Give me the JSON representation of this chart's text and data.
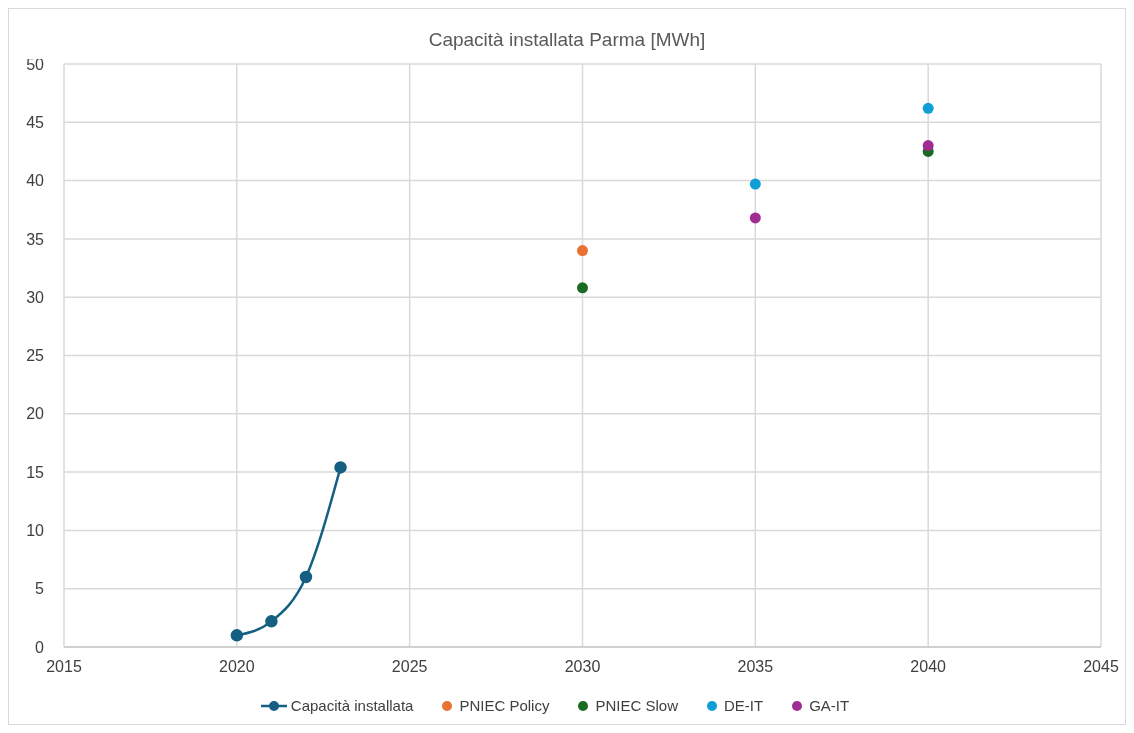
{
  "chart_data": {
    "type": "line",
    "title": "Capacità installata Parma [MWh]",
    "xlim": [
      2015,
      2045
    ],
    "xticks": [
      2015,
      2020,
      2025,
      2030,
      2035,
      2040,
      2045
    ],
    "ylim": [
      0,
      50
    ],
    "yticks": [
      0,
      5,
      10,
      15,
      20,
      25,
      30,
      35,
      40,
      45,
      50
    ],
    "grid": true,
    "legend": "bottom",
    "marker": "circle",
    "line_style": "solid",
    "series": [
      {
        "name": "Capacità installata",
        "type": "line",
        "color": "#156082",
        "x": [
          2020,
          2021,
          2022,
          2023
        ],
        "values": [
          1.0,
          2.2,
          6.0,
          15.4
        ]
      },
      {
        "name": "PNIEC Policy",
        "type": "scatter",
        "color": "#e97132",
        "x": [
          2030
        ],
        "values": [
          34.0
        ]
      },
      {
        "name": "PNIEC Slow",
        "type": "scatter",
        "color": "#196b24",
        "x": [
          2030,
          2040
        ],
        "values": [
          30.8,
          42.5
        ]
      },
      {
        "name": "DE-IT",
        "type": "scatter",
        "color": "#0f9ed5",
        "x": [
          2035,
          2040
        ],
        "values": [
          39.7,
          46.2
        ]
      },
      {
        "name": "GA-IT",
        "type": "scatter",
        "color": "#a02b93",
        "x": [
          2035,
          2040
        ],
        "values": [
          36.8,
          43.0
        ]
      }
    ]
  }
}
